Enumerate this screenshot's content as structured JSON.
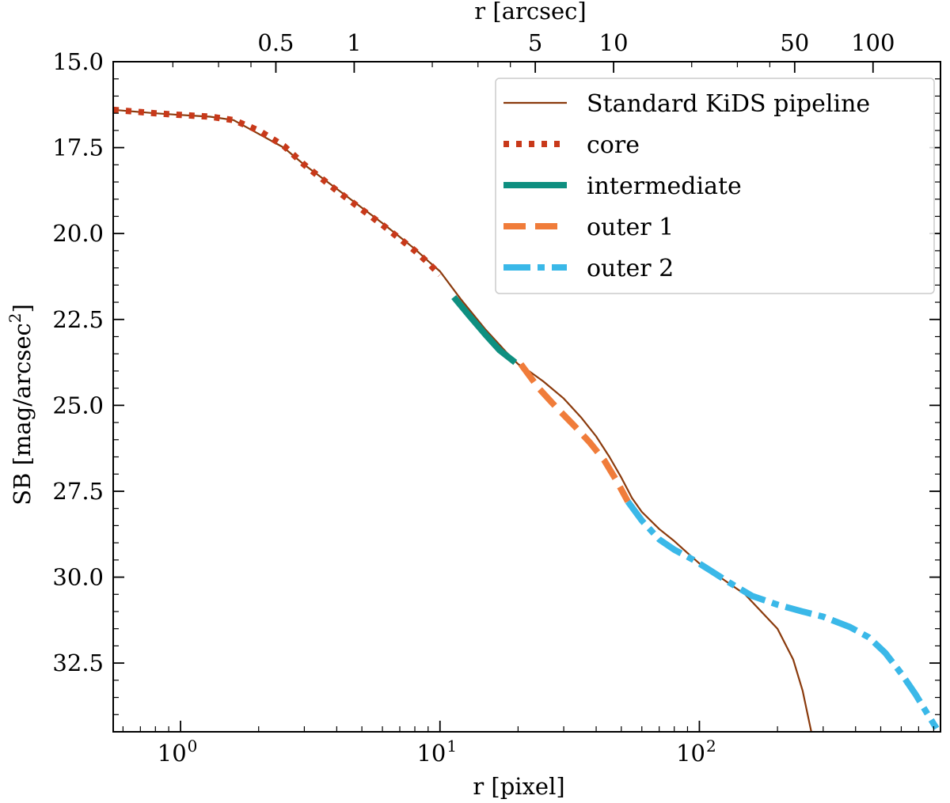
{
  "chart_data": {
    "type": "line",
    "xscale": "log",
    "xlim": [
      0.55,
      850
    ],
    "ylim": [
      34.5,
      15.0
    ],
    "xlabel": "r [pixel]",
    "ylabel": "SB [mag/arcsec",
    "ylabel_sup": "2",
    "ylabel_close": "]",
    "top_xlabel": "r [arcsec]",
    "bottom_ticks": [
      {
        "value": 1,
        "base": "10",
        "exp": "0"
      },
      {
        "value": 10,
        "base": "10",
        "exp": "1"
      },
      {
        "value": 100,
        "base": "10",
        "exp": "2"
      }
    ],
    "top_ticks": [
      {
        "label": "0.5",
        "pixel": 2.33
      },
      {
        "label": "1",
        "pixel": 4.67
      },
      {
        "label": "5",
        "pixel": 23.3
      },
      {
        "label": "10",
        "pixel": 46.7
      },
      {
        "label": "50",
        "pixel": 233
      },
      {
        "label": "100",
        "pixel": 467
      }
    ],
    "y_ticks": [
      "15.0",
      "17.5",
      "20.0",
      "22.5",
      "25.0",
      "27.5",
      "30.0",
      "32.5"
    ],
    "y_tick_values": [
      15.0,
      17.5,
      20.0,
      22.5,
      25.0,
      27.5,
      30.0,
      32.5
    ],
    "series": [
      {
        "name": "Standard KiDS pipeline",
        "color": "#8a3a0c",
        "style": "solid",
        "x": [
          0.55,
          0.8,
          1.0,
          1.3,
          1.6,
          2.0,
          2.5,
          3.0,
          4.0,
          5.0,
          6.0,
          7.0,
          8.0,
          9.0,
          10.0,
          12.0,
          15.0,
          18.0,
          20.0,
          22.0,
          25.0,
          30.0,
          35.0,
          40.0,
          45.0,
          50.0,
          55.0,
          60.0,
          70.0,
          80.0,
          90.0,
          100.0,
          120.0,
          150.0,
          200.0,
          230.0,
          250.0,
          270.0
        ],
        "y": [
          16.4,
          16.5,
          16.55,
          16.6,
          16.7,
          17.1,
          17.5,
          18.0,
          18.7,
          19.25,
          19.7,
          20.1,
          20.45,
          20.8,
          21.1,
          21.9,
          22.8,
          23.45,
          23.8,
          24.0,
          24.3,
          24.8,
          25.35,
          25.9,
          26.5,
          27.1,
          27.7,
          28.1,
          28.6,
          28.95,
          29.3,
          29.6,
          30.0,
          30.5,
          31.5,
          32.4,
          33.3,
          34.5
        ]
      },
      {
        "name": "core",
        "color": "#c8391a",
        "style": "dotted",
        "x": [
          0.55,
          0.8,
          1.0,
          1.3,
          1.6,
          2.0,
          2.5,
          3.0,
          4.0,
          5.0,
          6.0,
          7.0,
          8.0,
          9.0,
          10.0
        ],
        "y": [
          16.4,
          16.5,
          16.55,
          16.6,
          16.7,
          17.0,
          17.45,
          18.0,
          18.75,
          19.3,
          19.75,
          20.15,
          20.5,
          20.85,
          21.2
        ]
      },
      {
        "name": "intermediate",
        "color": "#0e8f80",
        "style": "solid-thick",
        "x": [
          11.3,
          13.0,
          15.0,
          17.0,
          19.5
        ],
        "y": [
          21.85,
          22.4,
          22.95,
          23.4,
          23.75
        ]
      },
      {
        "name": "outer 1",
        "color": "#f07c3a",
        "style": "dashed",
        "x": [
          20.5,
          24.0,
          28.0,
          33.0,
          38.0,
          43.0,
          48.0,
          53.0
        ],
        "y": [
          23.8,
          24.5,
          25.05,
          25.6,
          26.1,
          26.6,
          27.2,
          27.8
        ]
      },
      {
        "name": "outer 2",
        "color": "#3ab8e8",
        "style": "dashdot",
        "x": [
          53.0,
          60.0,
          70.0,
          80.0,
          95.0,
          110.0,
          130.0,
          160.0,
          200.0,
          250.0,
          300.0,
          380.0,
          450.0,
          520.0,
          600.0,
          680.0,
          760.0,
          820.0
        ],
        "y": [
          27.8,
          28.35,
          28.9,
          29.2,
          29.5,
          29.8,
          30.15,
          30.55,
          30.8,
          31.0,
          31.15,
          31.45,
          31.75,
          32.2,
          32.8,
          33.4,
          34.0,
          34.4
        ]
      }
    ],
    "legend": {
      "placement": "top-right",
      "entries": [
        "Standard KiDS pipeline",
        "core",
        "intermediate",
        "outer 1",
        "outer 2"
      ]
    }
  }
}
